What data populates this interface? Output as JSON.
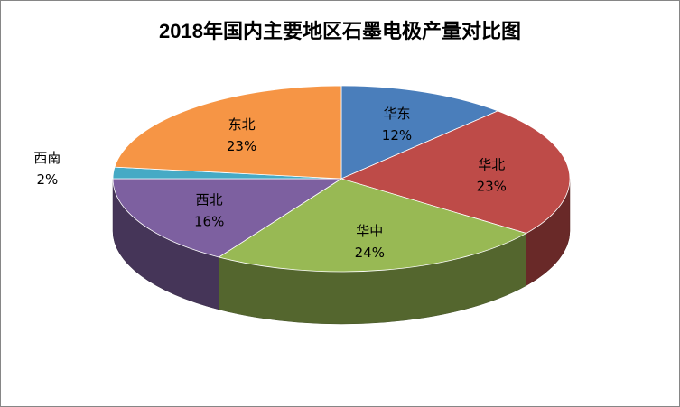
{
  "chart_data": {
    "type": "pie",
    "title": "2018年国内主要地区石墨电极产量对比图",
    "categories": [
      "华东",
      "华北",
      "华中",
      "西北",
      "西南",
      "东北"
    ],
    "values": [
      12,
      23,
      24,
      16,
      2,
      23
    ],
    "labels": [
      "12%",
      "23%",
      "24%",
      "16%",
      "2%",
      "23%"
    ],
    "colors": [
      "#4A7EBB",
      "#BE4B48",
      "#98B954",
      "#7D60A0",
      "#46AAC5",
      "#F69545"
    ],
    "legend": "none",
    "style": "3d"
  }
}
